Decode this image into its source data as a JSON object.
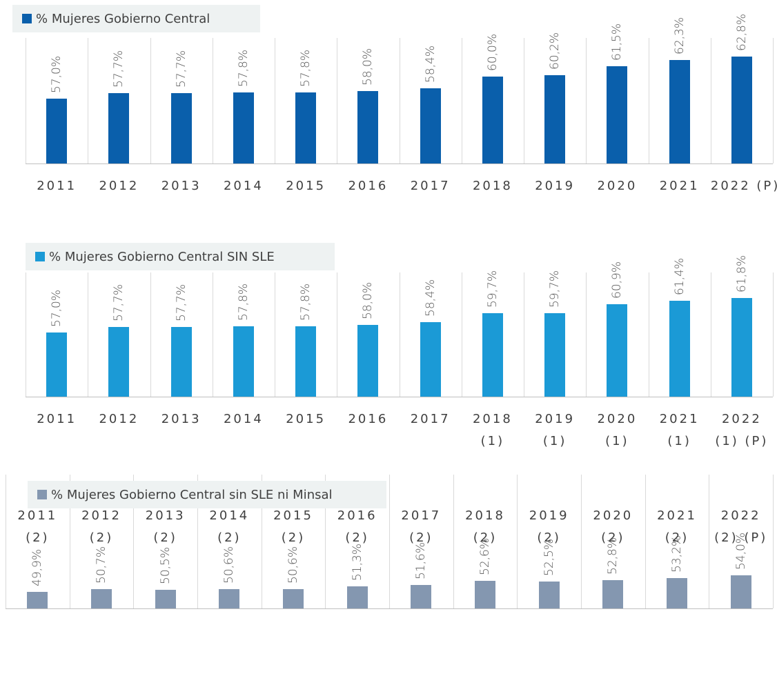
{
  "chart_data": [
    {
      "type": "bar",
      "categories": [
        "2011",
        "2012",
        "2013",
        "2014",
        "2015",
        "2016",
        "2017",
        "2018",
        "2019",
        "2020",
        "2021",
        "2022 (P)"
      ],
      "series": [
        {
          "name": "% Mujeres Gobierno Central",
          "color": "#0a5fab",
          "values": [
            57.0,
            57.7,
            57.7,
            57.8,
            57.8,
            58.0,
            58.4,
            60.0,
            60.2,
            61.5,
            62.3,
            62.8
          ],
          "value_labels": [
            "57,0%",
            "57,7%",
            "57,7%",
            "57,8%",
            "57,8%",
            "58,0%",
            "58,4%",
            "60,0%",
            "60,2%",
            "61,5%",
            "62,3%",
            "62,8%"
          ]
        }
      ],
      "ylim": [
        48,
        67
      ]
    },
    {
      "type": "bar",
      "categories": [
        "2011",
        "2012",
        "2013",
        "2014",
        "2015",
        "2016",
        "2017",
        "2018 (1)",
        "2019 (1)",
        "2020 (1)",
        "2021 (1)",
        "2022 (1) (P)"
      ],
      "series": [
        {
          "name": "% Mujeres Gobierno Central SIN SLE",
          "color": "#1b9ad6",
          "values": [
            57.0,
            57.7,
            57.7,
            57.8,
            57.8,
            58.0,
            58.4,
            59.7,
            59.7,
            60.9,
            61.4,
            61.8
          ],
          "value_labels": [
            "57,0%",
            "57,7%",
            "57,7%",
            "57,8%",
            "57,8%",
            "58,0%",
            "58,4%",
            "59,7%",
            "59,7%",
            "60,9%",
            "61,4%",
            "61,8%"
          ]
        }
      ],
      "ylim": [
        48,
        67
      ]
    },
    {
      "type": "bar",
      "categories": [
        "2011 (2)",
        "2012 (2)",
        "2013 (2)",
        "2014 (2)",
        "2015 (2)",
        "2016 (2)",
        "2017 (2)",
        "2018 (2)",
        "2019 (2)",
        "2020 (2)",
        "2021 (2)",
        "2022 (2) (P)"
      ],
      "series": [
        {
          "name": "% Mujeres Gobierno Central sin SLE ni Minsal",
          "color": "#8497b0",
          "values": [
            49.9,
            50.7,
            50.5,
            50.6,
            50.6,
            51.3,
            51.6,
            52.6,
            52.5,
            52.8,
            53.2,
            54.0
          ],
          "value_labels": [
            "49,9%",
            "50,7%",
            "50,5%",
            "50,6%",
            "50,6%",
            "51,3%",
            "51,6%",
            "52,6%",
            "52,5%",
            "52,8%",
            "53,2%",
            "54,0%"
          ]
        }
      ],
      "ylim": [
        46,
        78
      ]
    }
  ]
}
